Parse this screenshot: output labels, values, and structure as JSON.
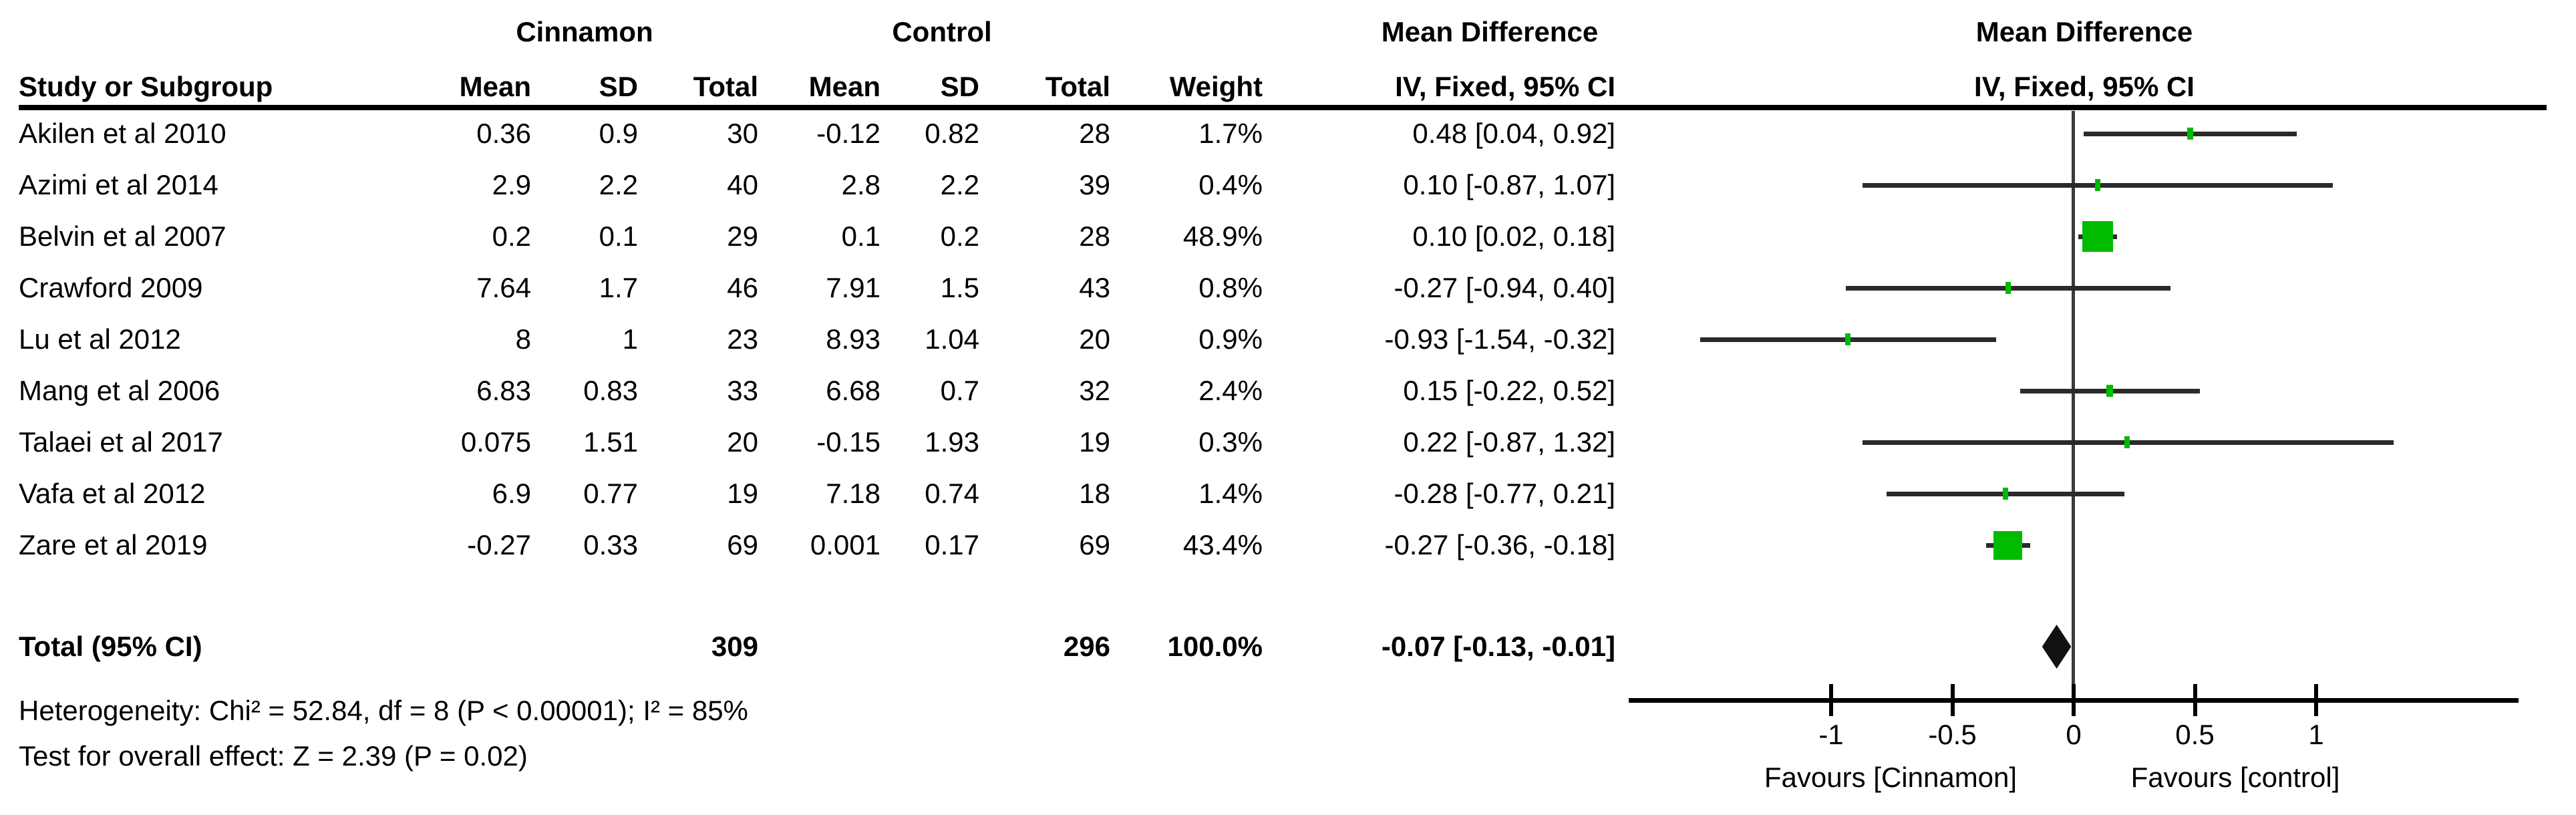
{
  "table": {
    "group_headers": {
      "cinnamon": "Cinnamon",
      "control": "Control",
      "mean_difference": "Mean Difference"
    },
    "column_headers": {
      "study": "Study or Subgroup",
      "mean": "Mean",
      "sd": "SD",
      "total": "Total",
      "weight": "Weight",
      "iv_fixed": "IV, Fixed, 95% CI"
    }
  },
  "chart_data": {
    "type": "forest",
    "title": "Mean Difference",
    "subtitle": "IV, Fixed, 95% CI",
    "effect_model": "IV, Fixed, 95% CI",
    "marker_color": "#00bb00",
    "diamond_color": "#111111",
    "x_ticks": [
      {
        "value": -1,
        "label": "-1"
      },
      {
        "value": -0.5,
        "label": "-0.5"
      },
      {
        "value": 0,
        "label": "0"
      },
      {
        "value": 0.5,
        "label": "0.5"
      },
      {
        "value": 1,
        "label": "1"
      }
    ],
    "x_axis_labels": {
      "left": "Favours [Cinnamon]",
      "right": "Favours [control]"
    },
    "studies": [
      {
        "study": "Akilen et al 2010",
        "cinnamon_mean": "0.36",
        "cinnamon_sd": "0.9",
        "cinnamon_total": "30",
        "control_mean": "-0.12",
        "control_sd": "0.82",
        "control_total": "28",
        "weight": "1.7%",
        "weight_value": 1.7,
        "ci_text": "0.48 [0.04, 0.92]",
        "md": 0.48,
        "ci_lower": 0.04,
        "ci_upper": 0.92
      },
      {
        "study": "Azimi et al 2014",
        "cinnamon_mean": "2.9",
        "cinnamon_sd": "2.2",
        "cinnamon_total": "40",
        "control_mean": "2.8",
        "control_sd": "2.2",
        "control_total": "39",
        "weight": "0.4%",
        "weight_value": 0.4,
        "ci_text": "0.10 [-0.87, 1.07]",
        "md": 0.1,
        "ci_lower": -0.87,
        "ci_upper": 1.07
      },
      {
        "study": "Belvin et al 2007",
        "cinnamon_mean": "0.2",
        "cinnamon_sd": "0.1",
        "cinnamon_total": "29",
        "control_mean": "0.1",
        "control_sd": "0.2",
        "control_total": "28",
        "weight": "48.9%",
        "weight_value": 48.9,
        "ci_text": "0.10 [0.02, 0.18]",
        "md": 0.1,
        "ci_lower": 0.02,
        "ci_upper": 0.18
      },
      {
        "study": "Crawford 2009",
        "cinnamon_mean": "7.64",
        "cinnamon_sd": "1.7",
        "cinnamon_total": "46",
        "control_mean": "7.91",
        "control_sd": "1.5",
        "control_total": "43",
        "weight": "0.8%",
        "weight_value": 0.8,
        "ci_text": "-0.27 [-0.94, 0.40]",
        "md": -0.27,
        "ci_lower": -0.94,
        "ci_upper": 0.4
      },
      {
        "study": "Lu et al 2012",
        "cinnamon_mean": "8",
        "cinnamon_sd": "1",
        "cinnamon_total": "23",
        "control_mean": "8.93",
        "control_sd": "1.04",
        "control_total": "20",
        "weight": "0.9%",
        "weight_value": 0.9,
        "ci_text": "-0.93 [-1.54, -0.32]",
        "md": -0.93,
        "ci_lower": -1.54,
        "ci_upper": -0.32
      },
      {
        "study": "Mang et al 2006",
        "cinnamon_mean": "6.83",
        "cinnamon_sd": "0.83",
        "cinnamon_total": "33",
        "control_mean": "6.68",
        "control_sd": "0.7",
        "control_total": "32",
        "weight": "2.4%",
        "weight_value": 2.4,
        "ci_text": "0.15 [-0.22, 0.52]",
        "md": 0.15,
        "ci_lower": -0.22,
        "ci_upper": 0.52
      },
      {
        "study": "Talaei et al 2017",
        "cinnamon_mean": "0.075",
        "cinnamon_sd": "1.51",
        "cinnamon_total": "20",
        "control_mean": "-0.15",
        "control_sd": "1.93",
        "control_total": "19",
        "weight": "0.3%",
        "weight_value": 0.3,
        "ci_text": "0.22 [-0.87, 1.32]",
        "md": 0.22,
        "ci_lower": -0.87,
        "ci_upper": 1.32
      },
      {
        "study": "Vafa et al 2012",
        "cinnamon_mean": "6.9",
        "cinnamon_sd": "0.77",
        "cinnamon_total": "19",
        "control_mean": "7.18",
        "control_sd": "0.74",
        "control_total": "18",
        "weight": "1.4%",
        "weight_value": 1.4,
        "ci_text": "-0.28 [-0.77, 0.21]",
        "md": -0.28,
        "ci_lower": -0.77,
        "ci_upper": 0.21
      },
      {
        "study": "Zare et al 2019",
        "cinnamon_mean": "-0.27",
        "cinnamon_sd": "0.33",
        "cinnamon_total": "69",
        "control_mean": "0.001",
        "control_sd": "0.17",
        "control_total": "69",
        "weight": "43.4%",
        "weight_value": 43.4,
        "ci_text": "-0.27 [-0.36, -0.18]",
        "md": -0.27,
        "ci_lower": -0.36,
        "ci_upper": -0.18
      }
    ],
    "total": {
      "label": "Total (95% CI)",
      "cinnamon_total": "309",
      "control_total": "296",
      "weight": "100.0%",
      "ci_text": "-0.07 [-0.13, -0.01]",
      "md": -0.07,
      "ci_lower": -0.13,
      "ci_upper": -0.01
    },
    "heterogeneity": "Heterogeneity: Chi² = 52.84, df = 8 (P < 0.00001); I² = 85%",
    "overall_effect": "Test for overall effect: Z = 2.39 (P = 0.02)"
  }
}
